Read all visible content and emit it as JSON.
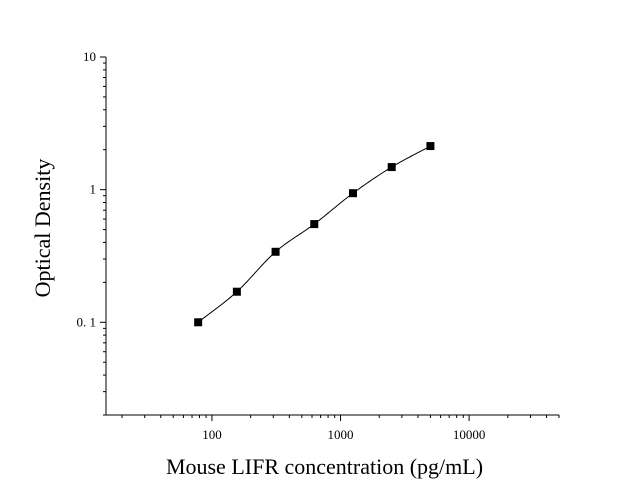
{
  "chart_data": {
    "type": "scatter",
    "title": "",
    "xlabel": "Mouse LIFR concentration (pg/mL)",
    "ylabel": "Optical Density",
    "x_scale": "log",
    "y_scale": "log",
    "xlim": [
      15,
      50000
    ],
    "ylim": [
      0.02,
      10
    ],
    "x_ticks": [
      100,
      1000,
      10000
    ],
    "x_tick_labels": [
      "100",
      "1000",
      "10000"
    ],
    "y_ticks": [
      0.1,
      1,
      10
    ],
    "y_tick_labels": [
      "0. 1",
      "1",
      "10"
    ],
    "grid": false,
    "legend": "none",
    "series": [
      {
        "marker": "square",
        "fit_curve": true,
        "points": [
          {
            "x": 78.125,
            "y": 0.1
          },
          {
            "x": 156.25,
            "y": 0.17
          },
          {
            "x": 312.5,
            "y": 0.34
          },
          {
            "x": 625,
            "y": 0.55
          },
          {
            "x": 1250,
            "y": 0.94
          },
          {
            "x": 2500,
            "y": 1.48
          },
          {
            "x": 5000,
            "y": 2.13
          }
        ]
      }
    ]
  }
}
